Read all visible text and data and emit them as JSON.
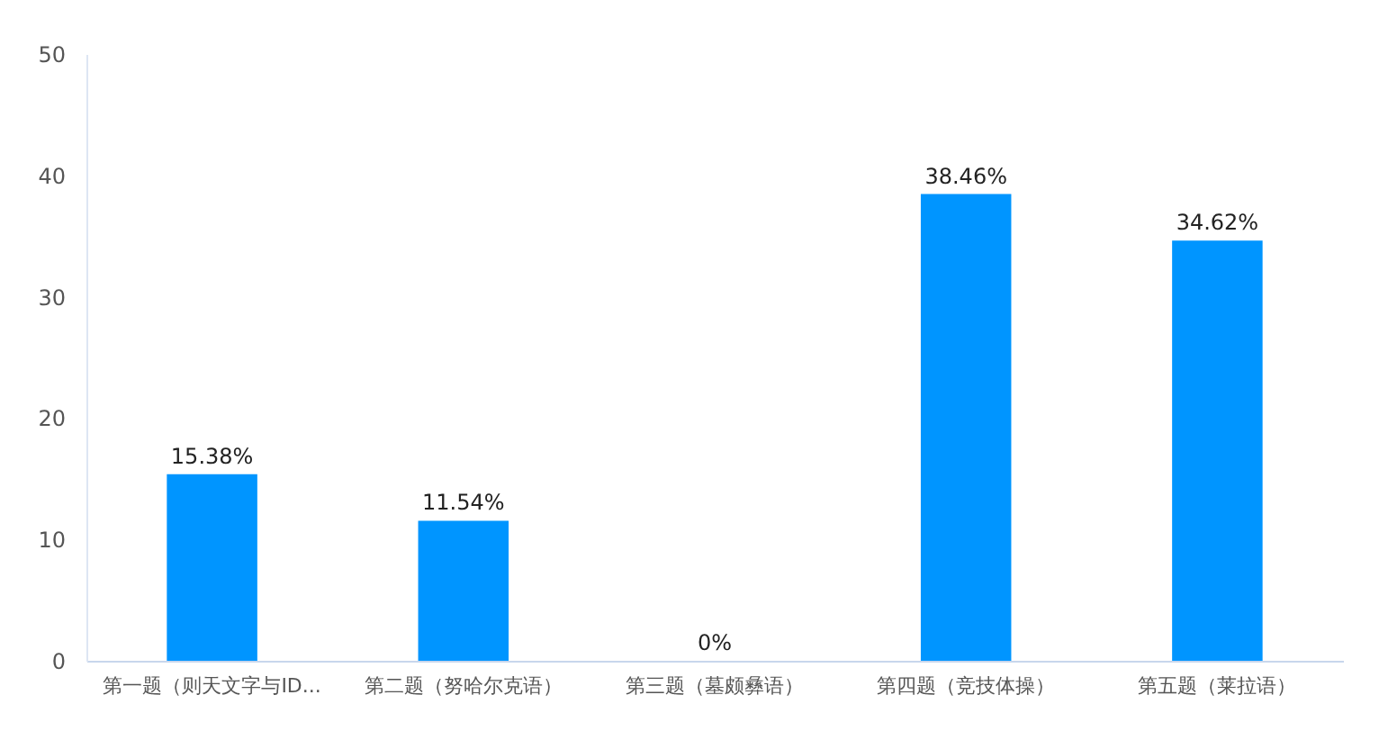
{
  "chart_data": {
    "type": "bar",
    "categories": [
      "第一题（则天文字与ID...",
      "第二题（努哈尔克语）",
      "第三题（墓颇彝语）",
      "第四题（竞技体操）",
      "第五题（莱拉语）"
    ],
    "values": [
      15.38,
      11.54,
      0,
      38.46,
      34.62
    ],
    "value_labels": [
      "15.38%",
      "11.54%",
      "0%",
      "38.46%",
      "34.62%"
    ],
    "color": "#0095ff",
    "ylim": [
      0,
      50
    ],
    "yticks": [
      0,
      10,
      20,
      30,
      40,
      50
    ],
    "grid": false
  }
}
